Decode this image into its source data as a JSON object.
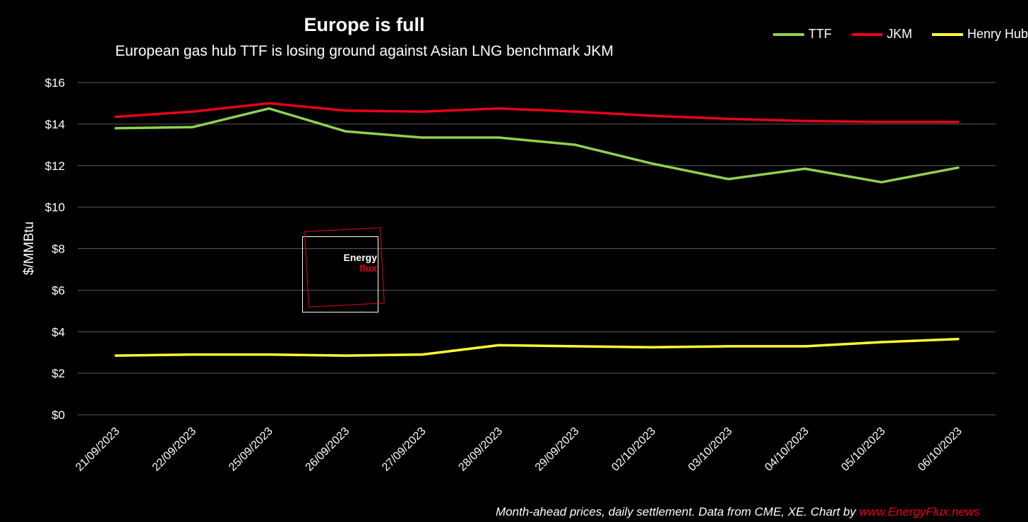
{
  "chart_data": {
    "type": "line",
    "title": "Europe is full",
    "subtitle": "European gas hub TTF is losing ground against Asian LNG benchmark JKM",
    "ylabel": "$/MMBtu",
    "xlabel": "",
    "ylim": [
      0,
      16
    ],
    "yticks": [
      0,
      2,
      4,
      6,
      8,
      10,
      12,
      14,
      16
    ],
    "ytick_labels": [
      "$0",
      "$2",
      "$4",
      "$6",
      "$8",
      "$10",
      "$12",
      "$14",
      "$16"
    ],
    "categories": [
      "21/09/2023",
      "22/09/2023",
      "25/09/2023",
      "26/09/2023",
      "27/09/2023",
      "28/09/2023",
      "29/09/2023",
      "02/10/2023",
      "03/10/2023",
      "04/10/2023",
      "05/10/2023",
      "06/10/2023"
    ],
    "grid": true,
    "legend_position": "top-right",
    "series": [
      {
        "name": "TTF",
        "color": "#92d050",
        "values": [
          13.8,
          13.85,
          14.75,
          13.65,
          13.35,
          13.35,
          13.0,
          12.1,
          11.35,
          11.85,
          11.2,
          11.9
        ]
      },
      {
        "name": "JKM",
        "color": "#e8001a",
        "values": [
          14.35,
          14.6,
          15.0,
          14.65,
          14.6,
          14.75,
          14.6,
          14.4,
          14.25,
          14.15,
          14.1,
          14.1
        ]
      },
      {
        "name": "Henry Hub",
        "color": "#ffff33",
        "values": [
          2.85,
          2.9,
          2.9,
          2.85,
          2.9,
          3.35,
          3.3,
          3.25,
          3.3,
          3.3,
          3.5,
          3.65
        ]
      }
    ]
  },
  "footer": {
    "text": "Month-ahead prices, daily settlement. Data from CME, XE. Chart by ",
    "link": "www.EnergyFlux.news"
  },
  "logo": {
    "word1": "Energy",
    "word2": "flux"
  }
}
